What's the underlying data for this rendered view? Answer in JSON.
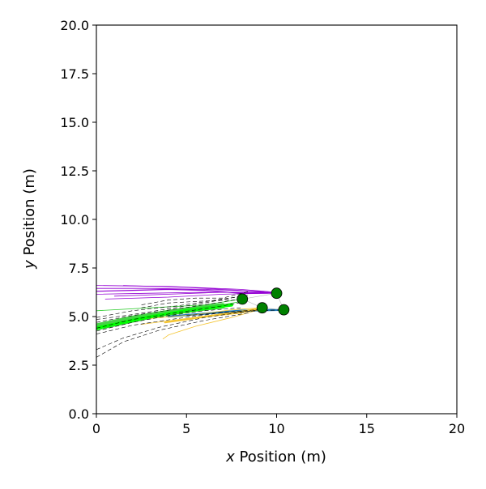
{
  "chart_data": {
    "type": "line",
    "title": "",
    "xlabel_var": "x",
    "xlabel_rest": " Position (m)",
    "ylabel_var": "y",
    "ylabel_rest": " Position (m)",
    "xlim": [
      0,
      20
    ],
    "ylim": [
      0,
      20
    ],
    "xticks": [
      0,
      5,
      10,
      15,
      20
    ],
    "xtick_labels": [
      "0",
      "5",
      "10",
      "15",
      "20"
    ],
    "yticks": [
      0,
      2.5,
      5,
      7.5,
      10,
      12.5,
      15,
      17.5,
      20
    ],
    "ytick_labels": [
      "0.0",
      "2.5",
      "5.0",
      "7.5",
      "10.0",
      "12.5",
      "15.0",
      "17.5",
      "20.0"
    ],
    "grid": false,
    "legend": "none",
    "agents": [
      {
        "x": 8.1,
        "y": 5.9,
        "color": "#008000"
      },
      {
        "x": 10.0,
        "y": 6.2,
        "color": "#008000"
      },
      {
        "x": 9.2,
        "y": 5.45,
        "color": "#008000"
      },
      {
        "x": 10.4,
        "y": 5.35,
        "color": "#008000"
      }
    ],
    "series": [
      {
        "color": "#9400d3",
        "style": "solid",
        "width": 1.2,
        "points": [
          [
            0.0,
            6.3
          ],
          [
            2,
            6.35
          ],
          [
            4,
            6.4
          ],
          [
            6,
            6.35
          ],
          [
            8.0,
            6.2
          ],
          [
            10.0,
            6.2
          ]
        ]
      },
      {
        "color": "#9400d3",
        "style": "solid",
        "width": 0.8,
        "points": [
          [
            0.0,
            6.45
          ],
          [
            3,
            6.45
          ],
          [
            6,
            6.4
          ],
          [
            9.0,
            6.3
          ],
          [
            10.0,
            6.2
          ]
        ]
      },
      {
        "color": "#9400d3",
        "style": "solid",
        "width": 0.8,
        "points": [
          [
            0.0,
            6.15
          ],
          [
            3,
            6.2
          ],
          [
            6,
            6.25
          ],
          [
            9.0,
            6.25
          ],
          [
            10.0,
            6.2
          ]
        ]
      },
      {
        "color": "#9400d3",
        "style": "solid",
        "width": 0.8,
        "points": [
          [
            1.0,
            6.05
          ],
          [
            4,
            6.15
          ],
          [
            7,
            6.25
          ],
          [
            10.0,
            6.2
          ]
        ]
      },
      {
        "color": "#9400d3",
        "style": "solid",
        "width": 0.8,
        "points": [
          [
            0.5,
            5.9
          ],
          [
            4,
            6.0
          ],
          [
            7,
            6.15
          ],
          [
            9.5,
            6.2
          ]
        ]
      },
      {
        "color": "#9400d3",
        "style": "solid",
        "width": 0.8,
        "points": [
          [
            1.5,
            6.6
          ],
          [
            5,
            6.5
          ],
          [
            8,
            6.35
          ],
          [
            10.0,
            6.2
          ]
        ]
      },
      {
        "color": "#9400d3",
        "style": "solid",
        "width": 0.8,
        "points": [
          [
            0.0,
            6.6
          ],
          [
            4,
            6.55
          ],
          [
            8,
            6.4
          ],
          [
            10.0,
            6.25
          ]
        ]
      },
      {
        "color": "#32cd32",
        "style": "solid",
        "width": 7,
        "points": [
          [
            0.0,
            4.5
          ],
          [
            2,
            4.9
          ],
          [
            4,
            5.2
          ],
          [
            6,
            5.45
          ],
          [
            7.0,
            5.55
          ]
        ]
      },
      {
        "color": "#00ff00",
        "style": "solid",
        "width": 4,
        "points": [
          [
            0.0,
            4.4
          ],
          [
            2.5,
            4.9
          ],
          [
            5,
            5.3
          ],
          [
            7.5,
            5.6
          ]
        ]
      },
      {
        "color": "#32cd32",
        "style": "solid",
        "width": 0.8,
        "points": [
          [
            0.0,
            4.3
          ],
          [
            3,
            4.9
          ],
          [
            6,
            5.45
          ],
          [
            8.2,
            5.8
          ]
        ]
      },
      {
        "color": "#32cd32",
        "style": "solid",
        "width": 0.8,
        "points": [
          [
            0.0,
            5.3
          ],
          [
            3,
            5.45
          ],
          [
            6,
            5.6
          ],
          [
            8.1,
            5.9
          ]
        ]
      },
      {
        "color": "#1f77b4",
        "style": "solid",
        "width": 2.5,
        "points": [
          [
            4,
            5.0
          ],
          [
            6,
            5.15
          ],
          [
            8,
            5.3
          ],
          [
            10.4,
            5.35
          ]
        ]
      },
      {
        "color": "#1f77b4",
        "style": "solid",
        "width": 1.2,
        "points": [
          [
            5,
            5.05
          ],
          [
            7,
            5.2
          ],
          [
            9,
            5.3
          ],
          [
            10.4,
            5.35
          ]
        ]
      },
      {
        "color": "#f4c430",
        "style": "solid",
        "width": 2,
        "points": [
          [
            3.8,
            4.7
          ],
          [
            5,
            4.85
          ],
          [
            6.5,
            5.05
          ],
          [
            8,
            5.2
          ],
          [
            9.2,
            5.45
          ]
        ]
      },
      {
        "color": "#f4c430",
        "style": "solid",
        "width": 0.8,
        "points": [
          [
            3.7,
            3.85
          ],
          [
            4,
            4.05
          ],
          [
            5.5,
            4.5
          ],
          [
            7.5,
            4.95
          ],
          [
            9.2,
            5.4
          ]
        ]
      },
      {
        "color": "#f4c430",
        "style": "solid",
        "width": 0.8,
        "points": [
          [
            2.5,
            4.6
          ],
          [
            5,
            4.9
          ],
          [
            7,
            5.15
          ],
          [
            9.2,
            5.45
          ]
        ]
      },
      {
        "color": "#f4c430",
        "style": "solid",
        "width": 0.8,
        "points": [
          [
            3,
            4.9
          ],
          [
            5.5,
            5.1
          ],
          [
            7.5,
            5.35
          ],
          [
            9.2,
            5.45
          ]
        ]
      },
      {
        "color": "#000000",
        "style": "dashed",
        "width": 0.6,
        "points": [
          [
            0.0,
            2.9
          ],
          [
            1.5,
            3.7
          ],
          [
            3.5,
            4.3
          ],
          [
            6,
            4.8
          ],
          [
            8.5,
            5.2
          ]
        ]
      },
      {
        "color": "#000000",
        "style": "dashed",
        "width": 0.6,
        "points": [
          [
            0.0,
            3.3
          ],
          [
            1.5,
            3.9
          ],
          [
            3.5,
            4.45
          ],
          [
            6,
            4.95
          ],
          [
            9.0,
            5.35
          ]
        ]
      },
      {
        "color": "#000000",
        "style": "dashed",
        "width": 0.6,
        "points": [
          [
            0.0,
            4.1
          ],
          [
            2,
            4.55
          ],
          [
            4.5,
            4.9
          ],
          [
            7,
            5.2
          ],
          [
            9.5,
            5.4
          ]
        ]
      },
      {
        "color": "#000000",
        "style": "dashed",
        "width": 0.6,
        "points": [
          [
            0.0,
            4.4
          ],
          [
            2,
            4.85
          ],
          [
            4.5,
            5.2
          ],
          [
            7,
            5.55
          ],
          [
            8.5,
            5.8
          ]
        ]
      },
      {
        "color": "#000000",
        "style": "dashed",
        "width": 0.6,
        "points": [
          [
            0.0,
            4.7
          ],
          [
            2,
            5.05
          ],
          [
            4.5,
            5.4
          ],
          [
            7,
            5.75
          ],
          [
            8.5,
            6.0
          ]
        ]
      },
      {
        "color": "#000000",
        "style": "dashed",
        "width": 0.6,
        "points": [
          [
            0.0,
            4.95
          ],
          [
            2,
            5.3
          ],
          [
            4.5,
            5.55
          ],
          [
            7,
            5.9
          ],
          [
            8.5,
            6.1
          ]
        ]
      },
      {
        "color": "#000000",
        "style": "dashed",
        "width": 0.6,
        "points": [
          [
            2.5,
            5.45
          ],
          [
            4,
            5.7
          ],
          [
            6,
            5.8
          ],
          [
            7.5,
            5.85
          ]
        ]
      },
      {
        "color": "#000000",
        "style": "dashed",
        "width": 0.6,
        "points": [
          [
            2.5,
            5.6
          ],
          [
            4,
            5.85
          ],
          [
            5.5,
            5.95
          ],
          [
            7,
            5.95
          ],
          [
            8.5,
            6.3
          ]
        ]
      },
      {
        "color": "#000000",
        "style": "dashed",
        "width": 0.6,
        "points": [
          [
            0.0,
            4.85
          ],
          [
            2,
            5.1
          ],
          [
            4,
            5.4
          ],
          [
            6,
            5.7
          ],
          [
            8.0,
            6.05
          ]
        ]
      },
      {
        "color": "#000000",
        "style": "dashed",
        "width": 0.6,
        "points": [
          [
            5,
            5.05
          ],
          [
            7,
            5.2
          ],
          [
            9,
            5.3
          ],
          [
            10.4,
            5.35
          ]
        ]
      },
      {
        "color": "#000000",
        "style": "dashed",
        "width": 0.6,
        "points": [
          [
            0.0,
            4.25
          ],
          [
            2,
            4.7
          ],
          [
            4,
            5.05
          ],
          [
            6,
            5.3
          ],
          [
            8,
            5.45
          ]
        ]
      }
    ]
  }
}
